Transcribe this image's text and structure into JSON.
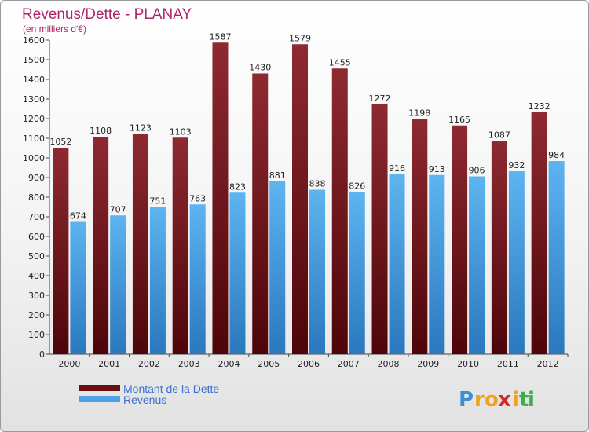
{
  "chart_data": {
    "type": "bar",
    "title": "Revenus/Dette - PLANAY",
    "subtitle": "(en milliers d'€)",
    "categories": [
      "2000",
      "2001",
      "2002",
      "2003",
      "2004",
      "2005",
      "2006",
      "2007",
      "2008",
      "2009",
      "2010",
      "2011",
      "2012"
    ],
    "series": [
      {
        "name": "Montant de la Dette",
        "color": "#7a1a22",
        "values": [
          1052,
          1108,
          1123,
          1103,
          1587,
          1430,
          1579,
          1455,
          1272,
          1198,
          1165,
          1087,
          1232
        ]
      },
      {
        "name": "Revenus",
        "color": "#4aa3e6",
        "values": [
          674,
          707,
          751,
          763,
          823,
          881,
          838,
          826,
          916,
          913,
          906,
          932,
          984
        ]
      }
    ],
    "ylim": [
      0,
      1600
    ],
    "yticks": [
      0,
      100,
      200,
      300,
      400,
      500,
      600,
      700,
      800,
      900,
      1000,
      1100,
      1200,
      1300,
      1400,
      1500,
      1600
    ],
    "grid": false,
    "legend_placement": "bottom-left"
  },
  "branding": {
    "logo_letters": [
      "P",
      "r",
      "o",
      "x",
      "i",
      "t",
      "i"
    ],
    "logo_colors": [
      "#3b8fd6",
      "#f0a020",
      "#f0a020",
      "#d02b2b",
      "#f0a020",
      "#3fae49",
      "#3fae49"
    ]
  }
}
